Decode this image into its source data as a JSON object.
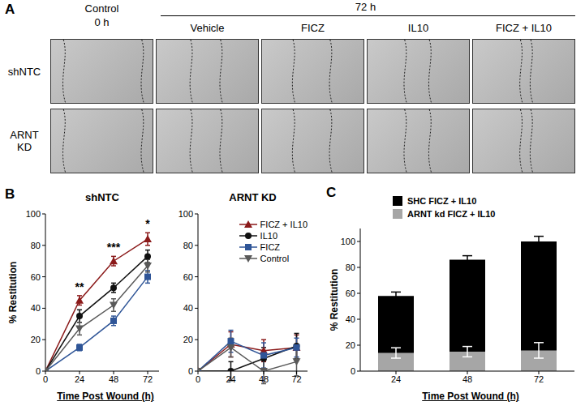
{
  "image_panel": {
    "panel": "A",
    "control_header": [
      "Control",
      "0 h"
    ],
    "group_header": "72 h",
    "columns": [
      "Vehicle",
      "FICZ",
      "IL10",
      "FICZ + IL10"
    ],
    "rows": [
      "shNTC",
      "ARNT KD"
    ]
  },
  "chart_data": [
    {
      "panel": "B",
      "type": "line",
      "title": "shNTC",
      "x_label": "Time Post Wound (h)",
      "y_label": "% Restitution",
      "x": [
        0,
        24,
        48,
        72
      ],
      "xlim": [
        0,
        80
      ],
      "xticks": [
        0,
        24,
        48,
        72
      ],
      "ylim": [
        0,
        100
      ],
      "yticks": [
        0,
        20,
        40,
        60,
        80,
        100
      ],
      "series": [
        {
          "name": "FICZ + IL10",
          "color": "#8b1a1a",
          "marker": "triangle",
          "values": [
            0,
            45,
            70,
            84
          ],
          "errors": [
            0,
            3,
            3,
            4
          ]
        },
        {
          "name": "IL10",
          "color": "#111111",
          "marker": "circle",
          "values": [
            0,
            35,
            53,
            73
          ],
          "errors": [
            0,
            4,
            3,
            4
          ]
        },
        {
          "name": "FICZ",
          "color": "#2f5597",
          "marker": "square",
          "values": [
            0,
            15,
            32,
            60
          ],
          "errors": [
            0,
            2,
            3,
            4
          ]
        },
        {
          "name": "Control",
          "color": "#595959",
          "marker": "triangle_down",
          "values": [
            0,
            27,
            42,
            67
          ],
          "errors": [
            0,
            4,
            4,
            4
          ]
        }
      ],
      "annotations": [
        {
          "x": 24,
          "text": "**"
        },
        {
          "x": 48,
          "text": "***"
        },
        {
          "x": 72,
          "text": "*"
        }
      ]
    },
    {
      "type": "line",
      "title": "ARNT KD",
      "x": [
        0,
        24,
        48,
        72
      ],
      "xlim": [
        0,
        80
      ],
      "xticks": [
        0,
        24,
        48,
        72
      ],
      "ylim": [
        0,
        100
      ],
      "yticks": [
        0,
        20,
        40,
        60,
        80,
        100
      ],
      "legend": "upper right",
      "series": [
        {
          "name": "FICZ + IL10",
          "color": "#8b1a1a",
          "marker": "triangle",
          "values": [
            0,
            17,
            13,
            15
          ],
          "errors": [
            0,
            8,
            7,
            8
          ]
        },
        {
          "name": "IL10",
          "color": "#111111",
          "marker": "circle",
          "values": [
            0,
            0,
            8,
            16
          ],
          "errors": [
            0,
            6,
            7,
            8
          ]
        },
        {
          "name": "FICZ",
          "color": "#2f5597",
          "marker": "square",
          "values": [
            0,
            19,
            10,
            15
          ],
          "errors": [
            0,
            7,
            8,
            6
          ]
        },
        {
          "name": "Control",
          "color": "#595959",
          "marker": "triangle_down",
          "values": [
            0,
            15,
            0,
            6
          ],
          "errors": [
            0,
            6,
            8,
            9
          ]
        }
      ]
    },
    {
      "panel": "C",
      "type": "bar",
      "x_label": "Time Post Wound (h)",
      "y_label": "% Restitution",
      "categories": [
        "24",
        "48",
        "72"
      ],
      "ylim": [
        0,
        110
      ],
      "yticks": [
        0,
        20,
        40,
        60,
        80,
        100
      ],
      "stacked": false,
      "legend": "upper left",
      "series": [
        {
          "name": "SHC FICZ + IL10",
          "color": "#000000",
          "values": [
            58,
            86,
            100
          ],
          "errors": [
            3,
            3,
            4
          ]
        },
        {
          "name": "ARNT kd FICZ + IL10",
          "color": "#a6a6a6",
          "values": [
            14,
            15,
            16
          ],
          "errors": [
            4,
            4,
            6
          ]
        }
      ]
    }
  ]
}
